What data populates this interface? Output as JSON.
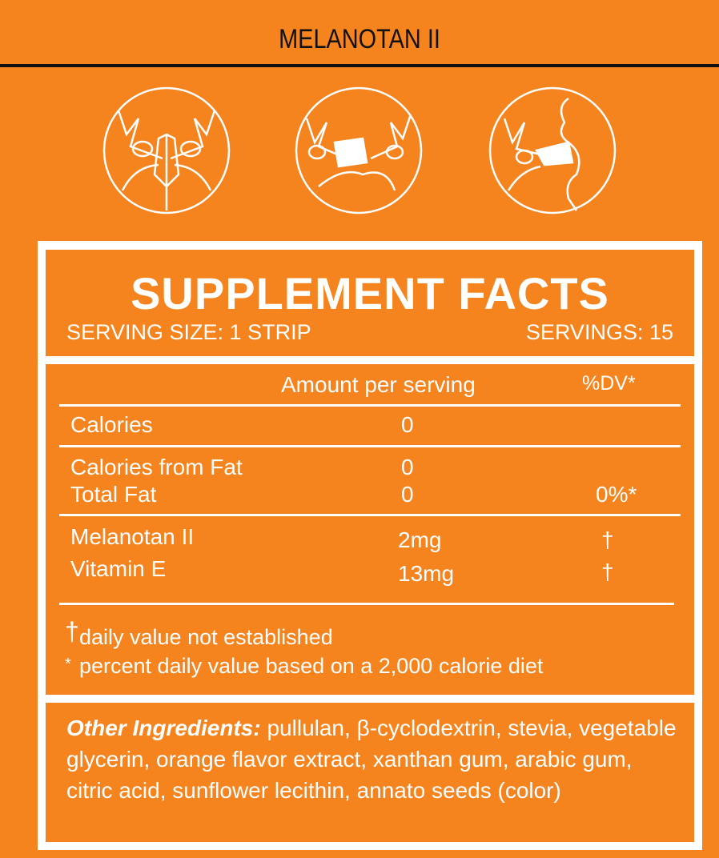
{
  "header": {
    "title": "MELANOTAN II"
  },
  "icons": [
    "apply-strip-step-1-icon",
    "apply-strip-step-2-icon",
    "apply-strip-step-3-icon"
  ],
  "facts": {
    "heading": "SUPPLEMENT FACTS",
    "serving_size": "SERVING SIZE: 1 STRIP",
    "servings": "SERVINGS: 15",
    "col_amount": "Amount per serving",
    "col_dv": "%DV*",
    "rows": [
      {
        "name": "Calories",
        "amount": "0",
        "dv": ""
      },
      {
        "name": "Calories from Fat",
        "amount": "0",
        "dv": ""
      },
      {
        "name": "Total Fat",
        "amount": "0",
        "dv": "0%*"
      },
      {
        "name": "Melanotan II",
        "amount": "2mg",
        "dv": "†"
      },
      {
        "name": "Vitamin E",
        "amount": "13mg",
        "dv": "†"
      }
    ],
    "footnote_dagger_symbol": "†",
    "footnote_dagger": "daily value not established",
    "footnote_star_symbol": "*",
    "footnote_star": "percent daily value based on a 2,000 calorie diet"
  },
  "ingredients": {
    "label": "Other Ingredients:",
    "text": " pullulan, β-cyclodextrin, stevia, vegetable glycerin, orange flavor extract, xanthan gum, arabic gum, citric acid, sunflower lecithin, annato seeds (color)"
  },
  "colors": {
    "background": "#f5841f",
    "text": "#ffffff",
    "title": "#111111"
  }
}
